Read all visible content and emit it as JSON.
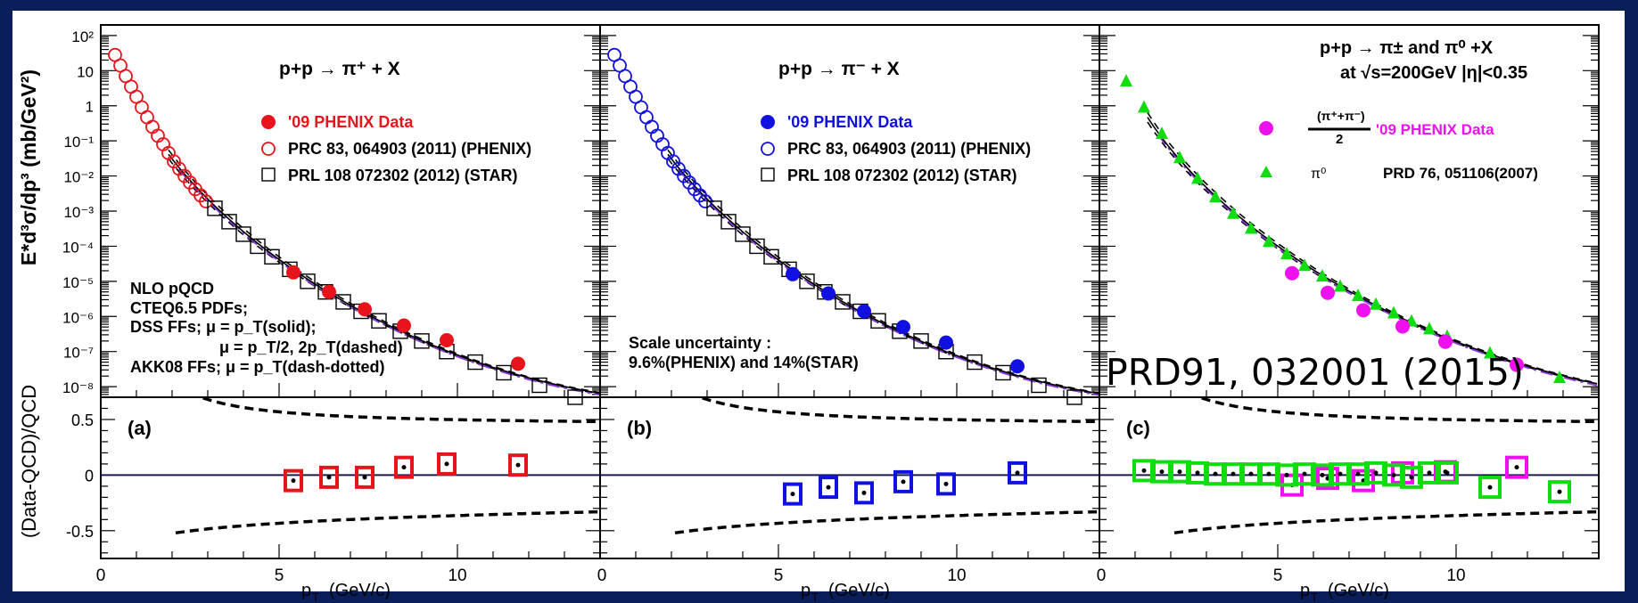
{
  "chart_data": [
    {
      "type": "scatter",
      "title": "p+p → π⁺ + X",
      "panel_label": "(a)",
      "xlabel": "p_T (GeV/c)",
      "ylabel": "E*d³σ/dp³ (mb/GeV²)",
      "ratio_ylabel": "(Data-QCD)/QCD",
      "xlim": [
        0,
        14
      ],
      "ylim": [
        5e-09,
        200
      ],
      "yscale": "log",
      "ratio_ylim": [
        -0.75,
        0.7
      ],
      "x_ticks": [
        "0",
        "5",
        "10"
      ],
      "y_ticks": [
        "10²",
        "10",
        "1",
        "10⁻¹",
        "10⁻²",
        "10⁻³",
        "10⁻⁴",
        "10⁻⁵",
        "10⁻⁶",
        "10⁻⁷",
        "10⁻⁸"
      ],
      "ratio_ticks": [
        "0.5",
        "0",
        "-0.5"
      ],
      "legend": [
        "'09 PHENIX Data",
        "PRC 83, 064903 (2011) (PHENIX)",
        "PRL 108 072302 (2012) (STAR)"
      ],
      "annotation": [
        "NLO pQCD",
        "CTEQ6.5 PDFs;",
        "DSS FFs; μ = p_T(solid);",
        "μ = p_T/2, 2p_T(dashed)",
        "AKK08 FFs; μ = p_T(dash-dotted)"
      ],
      "color": "#e8141c",
      "series": [
        {
          "name": "'09 PHENIX Data",
          "x": [
            5.4,
            6.4,
            7.4,
            8.5,
            9.7,
            11.7
          ],
          "y": [
            1.8e-05,
            5e-06,
            1.6e-06,
            5.5e-07,
            2.1e-07,
            4.5e-08
          ]
        },
        {
          "name": "PRC 83, 064903 (2011) (PHENIX)",
          "x": [
            0.4,
            0.55,
            0.7,
            0.85,
            1.0,
            1.15,
            1.3,
            1.45,
            1.6,
            1.75,
            1.9,
            2.05,
            2.2,
            2.35,
            2.5,
            2.65,
            2.8,
            2.95
          ],
          "y": [
            28,
            14,
            7,
            3.5,
            1.8,
            0.9,
            0.47,
            0.25,
            0.14,
            0.08,
            0.045,
            0.026,
            0.016,
            0.01,
            0.0065,
            0.0042,
            0.0028,
            0.0019
          ]
        },
        {
          "name": "PRL 108 072302 (2012) (STAR)",
          "x": [
            3.2,
            3.6,
            4.0,
            4.4,
            4.8,
            5.3,
            5.8,
            6.3,
            6.8,
            7.3,
            7.8,
            8.4,
            9.0,
            9.7,
            10.5,
            11.3,
            12.3,
            13.3
          ],
          "y": [
            0.0012,
            0.0005,
            0.00022,
            0.0001,
            5e-05,
            2.2e-05,
            1e-05,
            5e-06,
            2.6e-06,
            1.4e-06,
            7.5e-07,
            3.8e-07,
            2e-07,
            1e-07,
            5e-08,
            2.5e-08,
            1.1e-08,
            5e-09
          ]
        }
      ],
      "ratio": {
        "x": [
          5.4,
          6.4,
          7.4,
          8.5,
          9.7,
          11.7
        ],
        "y": [
          -0.05,
          -0.02,
          -0.02,
          0.07,
          0.1,
          0.09
        ]
      }
    },
    {
      "type": "scatter",
      "title": "p+p → π⁻ + X",
      "panel_label": "(b)",
      "xlabel": "p_T (GeV/c)",
      "xlim": [
        0,
        14
      ],
      "ylim": [
        5e-09,
        200
      ],
      "yscale": "log",
      "ratio_ylim": [
        -0.75,
        0.7
      ],
      "x_ticks": [
        "0",
        "5",
        "10"
      ],
      "legend": [
        "'09 PHENIX Data",
        "PRC 83, 064903 (2011) (PHENIX)",
        "PRL 108 072302 (2012) (STAR)"
      ],
      "annotation": [
        "Scale uncertainty :",
        "9.6%(PHENIX) and 14%(STAR)"
      ],
      "color": "#1010e0",
      "series": [
        {
          "name": "'09 PHENIX Data",
          "x": [
            5.4,
            6.4,
            7.4,
            8.5,
            9.7,
            11.7
          ],
          "y": [
            1.6e-05,
            4.5e-06,
            1.4e-06,
            5e-07,
            1.8e-07,
            3.8e-08
          ]
        },
        {
          "name": "PRC 83, 064903 (2011) (PHENIX)",
          "x": [
            0.4,
            0.55,
            0.7,
            0.85,
            1.0,
            1.15,
            1.3,
            1.45,
            1.6,
            1.75,
            1.9,
            2.05,
            2.2,
            2.35,
            2.5,
            2.65,
            2.8,
            2.95
          ],
          "y": [
            28,
            14,
            7,
            3.5,
            1.8,
            0.9,
            0.47,
            0.25,
            0.14,
            0.08,
            0.045,
            0.026,
            0.016,
            0.01,
            0.0065,
            0.0042,
            0.0028,
            0.0019
          ]
        },
        {
          "name": "PRL 108 072302 (2012) (STAR)",
          "x": [
            3.2,
            3.6,
            4.0,
            4.4,
            4.8,
            5.3,
            5.8,
            6.3,
            6.8,
            7.3,
            7.8,
            8.4,
            9.0,
            9.7,
            10.5,
            11.3,
            12.3,
            13.3
          ],
          "y": [
            0.0012,
            0.0005,
            0.00022,
            0.0001,
            5e-05,
            2.2e-05,
            1e-05,
            5e-06,
            2.6e-06,
            1.4e-06,
            7.5e-07,
            3.8e-07,
            2e-07,
            1e-07,
            5e-08,
            2.5e-08,
            1.1e-08,
            5e-09
          ]
        }
      ],
      "ratio": {
        "x": [
          5.4,
          6.4,
          7.4,
          8.5,
          9.7,
          11.7
        ],
        "y": [
          -0.17,
          -0.11,
          -0.16,
          -0.06,
          -0.08,
          0.02
        ]
      }
    },
    {
      "type": "scatter",
      "title": "p+p → π± and π⁰ +X",
      "subtitle": "at √s=200GeV   |η|<0.35",
      "panel_label": "(c)",
      "xlabel": "p_T (GeV/c)",
      "xlim": [
        0,
        14
      ],
      "ylim": [
        5e-09,
        200
      ],
      "yscale": "log",
      "ratio_ylim": [
        -0.75,
        0.7
      ],
      "x_ticks": [
        "0",
        "5",
        "10"
      ],
      "legend": [
        "(π⁺+π⁻)/2   '09 PHENIX Data",
        "π⁰        PRD 76, 051106(2007)"
      ],
      "legend_fraction": {
        "numerator": "(π⁺+π⁻)",
        "denominator": "2",
        "text": "'09 PHENIX Data"
      },
      "legend_pi0": {
        "symbol": "π⁰",
        "text": "PRD 76, 051106(2007)"
      },
      "overlay_text": "PRD91, 032001 (2015)",
      "series": [
        {
          "name": "(π⁺+π⁻)/2 '09 PHENIX Data",
          "color": "#ee10ee",
          "x": [
            5.4,
            6.4,
            7.4,
            8.5,
            9.7,
            11.7
          ],
          "y": [
            1.7e-05,
            4.7e-06,
            1.5e-06,
            5.2e-07,
            1.9e-07,
            4.2e-08
          ]
        },
        {
          "name": "π⁰ PRD 76, 051106(2007)",
          "color": "#10dd10",
          "x": [
            0.75,
            1.25,
            1.75,
            2.25,
            2.75,
            3.25,
            3.75,
            4.25,
            4.75,
            5.25,
            5.75,
            6.25,
            6.75,
            7.25,
            7.75,
            8.25,
            8.75,
            9.25,
            9.75,
            10.95,
            12.9
          ],
          "y": [
            5,
            0.9,
            0.16,
            0.033,
            0.0085,
            0.0025,
            0.00085,
            0.00032,
            0.000135,
            6e-05,
            2.8e-05,
            1.4e-05,
            7.2e-06,
            3.9e-06,
            2.2e-06,
            1.25e-06,
            7.3e-07,
            4.4e-07,
            2.7e-07,
            9e-08,
            1.8e-08
          ]
        }
      ],
      "ratio_series": [
        {
          "color": "#ee10ee",
          "x": [
            5.4,
            6.4,
            7.4,
            8.5,
            9.7,
            11.7
          ],
          "y": [
            -0.09,
            -0.03,
            -0.05,
            0.02,
            0.03,
            0.07
          ]
        },
        {
          "color": "#10dd10",
          "x": [
            1.25,
            1.75,
            2.25,
            2.75,
            3.25,
            3.75,
            4.25,
            4.75,
            5.25,
            5.75,
            6.25,
            6.75,
            7.25,
            7.75,
            8.25,
            8.75,
            9.25,
            9.75,
            10.95,
            12.9
          ],
          "y": [
            0.04,
            0.03,
            0.03,
            0.02,
            0.01,
            0.01,
            0.01,
            0.01,
            0.0,
            0.01,
            0.0,
            0.01,
            0.01,
            0.02,
            0.0,
            -0.02,
            0.02,
            0.02,
            -0.11,
            -0.15
          ]
        }
      ]
    }
  ]
}
